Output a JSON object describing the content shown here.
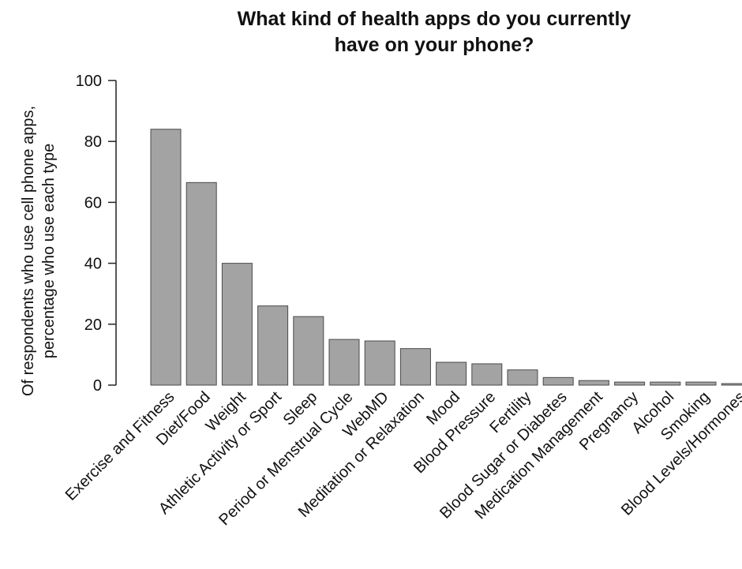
{
  "colors": {
    "bar_fill": "#a3a3a3",
    "bar_stroke": "#4a4a4a",
    "axis": "#222222"
  },
  "chart_data": {
    "type": "bar",
    "title_lines": [
      "What kind of health apps do you currently",
      "have on your phone?"
    ],
    "xlabel": "",
    "ylabel_lines": [
      "Of respondents who use cell phone apps,",
      "percentage who use each type"
    ],
    "ylim": [
      0,
      100
    ],
    "yticks": [
      0,
      20,
      40,
      60,
      80,
      100
    ],
    "grid": false,
    "categories": [
      "Exercise and Fitness",
      "Diet/Food",
      "Weight",
      "Athletic Activity or Sport",
      "Sleep",
      "Period or Menstrual Cycle",
      "WebMD",
      "Meditation or Relaxation",
      "Mood",
      "Blood Pressure",
      "Fertility",
      "Blood Sugar or Diabetes",
      "Medication Management",
      "Pregnancy",
      "Alcohol",
      "Smoking",
      "Blood Levels/Hormones"
    ],
    "values": [
      84,
      66.5,
      40,
      26,
      22.5,
      15,
      14.5,
      12,
      7.5,
      7,
      5,
      2.5,
      1.5,
      1,
      1,
      1,
      0.5
    ]
  }
}
